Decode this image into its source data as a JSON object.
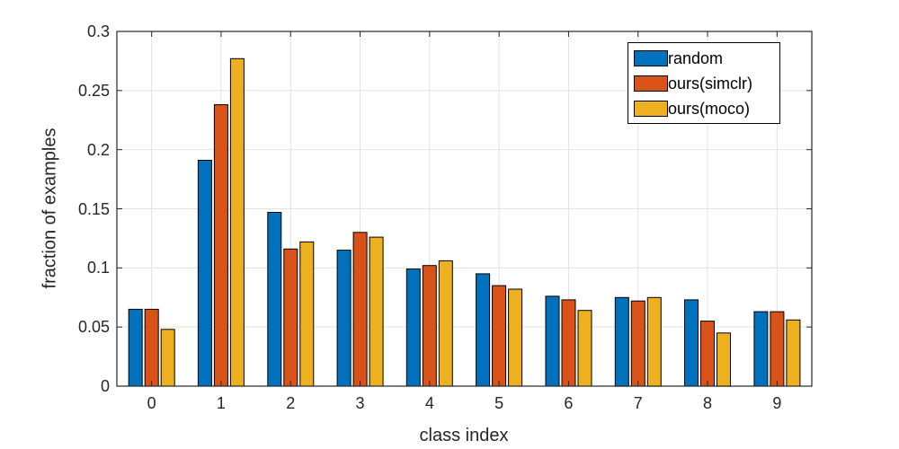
{
  "chart_data": {
    "type": "bar",
    "title": "",
    "xlabel": "class index",
    "ylabel": "fraction of examples",
    "categories": [
      "0",
      "1",
      "2",
      "3",
      "4",
      "5",
      "6",
      "7",
      "8",
      "9"
    ],
    "series": [
      {
        "name": "random",
        "color": "#0072BD",
        "values": [
          0.065,
          0.191,
          0.147,
          0.115,
          0.099,
          0.095,
          0.076,
          0.075,
          0.073,
          0.063
        ]
      },
      {
        "name": "ours(simclr)",
        "color": "#D95319",
        "values": [
          0.065,
          0.238,
          0.116,
          0.13,
          0.102,
          0.085,
          0.073,
          0.072,
          0.055,
          0.063
        ]
      },
      {
        "name": "ours(moco)",
        "color": "#EDB120",
        "values": [
          0.048,
          0.277,
          0.122,
          0.126,
          0.106,
          0.082,
          0.064,
          0.075,
          0.045,
          0.056
        ]
      }
    ],
    "ylim": [
      0,
      0.3
    ],
    "yticks": [
      0,
      0.05,
      0.1,
      0.15,
      0.2,
      0.25,
      0.3
    ],
    "ytick_labels": [
      "0",
      "0.05",
      "0.1",
      "0.15",
      "0.2",
      "0.25",
      "0.3"
    ],
    "grid": true,
    "legend_position": "top-right"
  },
  "colors": {
    "bar_blue": "#0072BD",
    "bar_orange": "#D95319",
    "bar_yellow": "#EDB120",
    "axis": "#262626",
    "grid": "#e2e2e2",
    "bar_edge": "#000000",
    "background": "#ffffff"
  }
}
